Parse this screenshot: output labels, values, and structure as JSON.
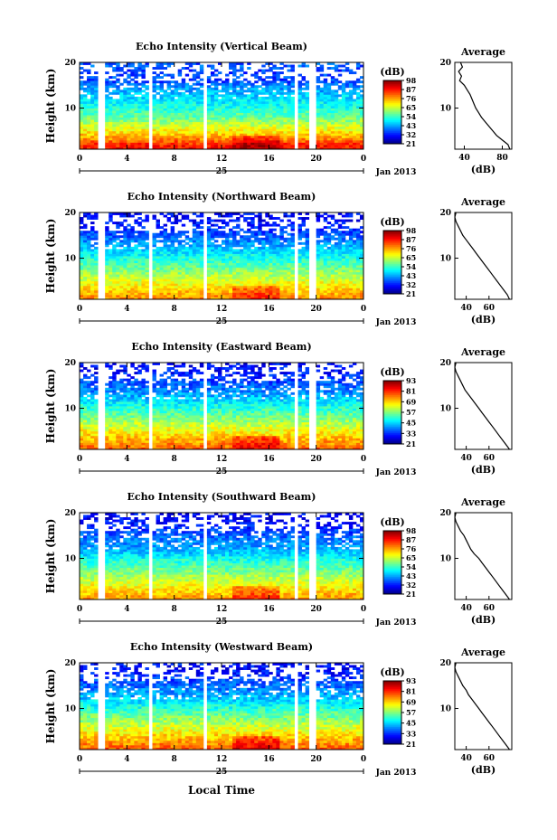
{
  "figure": {
    "time_axis_label": "Local Time",
    "date_label": "Jan 2013",
    "day_label": "25",
    "average_title": "Average",
    "average_unit": "(dB)",
    "colorbar_unit": "(dB)",
    "ylabel": "Height (km)"
  },
  "chart_data": [
    {
      "type": "heatmap",
      "title": "Echo Intensity (Vertical Beam)",
      "ylabel": "Height (km)",
      "xlabel": "",
      "x_range": [
        0,
        24
      ],
      "x_ticks": [
        "0",
        "4",
        "8",
        "12",
        "16",
        "20",
        "0"
      ],
      "y_range": [
        1,
        20
      ],
      "y_ticks": [
        "10",
        "20"
      ],
      "colorbar": {
        "ticks": [
          "21",
          "32",
          "43",
          "54",
          "65",
          "76",
          "87",
          "98"
        ],
        "range": [
          21,
          98
        ]
      },
      "data_gaps_hours": [
        [
          1.6,
          2.0
        ],
        [
          5.8,
          6.1
        ],
        [
          10.6,
          10.9
        ],
        [
          18.3,
          18.6
        ],
        [
          19.4,
          19.9
        ]
      ],
      "profile": {
        "title": "Average",
        "xlabel": "(dB)",
        "x_range": [
          30,
          90
        ],
        "x_ticks": [
          "40",
          "80"
        ],
        "height_km": [
          1,
          2,
          3,
          4,
          5,
          6,
          7,
          8,
          9,
          10,
          11,
          12,
          13,
          14,
          15,
          16,
          17,
          18,
          19,
          20
        ],
        "mean_db": [
          88,
          86,
          80,
          74,
          70,
          66,
          62,
          58,
          55,
          52,
          50,
          48,
          46,
          43,
          40,
          35,
          37,
          34,
          38,
          36
        ]
      }
    },
    {
      "type": "heatmap",
      "title": "Echo Intensity (Northward Beam)",
      "ylabel": "Height (km)",
      "xlabel": "",
      "x_range": [
        0,
        24
      ],
      "x_ticks": [
        "0",
        "4",
        "8",
        "12",
        "16",
        "20",
        "0"
      ],
      "y_range": [
        1,
        20
      ],
      "y_ticks": [
        "10",
        "20"
      ],
      "colorbar": {
        "ticks": [
          "21",
          "32",
          "43",
          "54",
          "65",
          "76",
          "87",
          "98"
        ],
        "range": [
          21,
          98
        ]
      },
      "data_gaps_hours": [
        [
          1.6,
          2.0
        ],
        [
          5.8,
          6.1
        ],
        [
          10.6,
          10.9
        ],
        [
          18.3,
          18.6
        ],
        [
          19.4,
          19.9
        ]
      ],
      "profile": {
        "title": "Average",
        "xlabel": "(dB)",
        "x_range": [
          30,
          80
        ],
        "x_ticks": [
          "40",
          "60"
        ],
        "height_km": [
          1,
          2,
          3,
          4,
          5,
          6,
          7,
          8,
          9,
          10,
          11,
          12,
          13,
          14,
          15,
          16,
          17,
          18,
          19,
          20
        ],
        "mean_db": [
          78,
          76,
          73,
          70,
          67,
          64,
          61,
          58,
          55,
          52,
          49,
          46,
          43,
          40,
          37,
          35,
          33,
          31,
          30,
          31
        ]
      }
    },
    {
      "type": "heatmap",
      "title": "Echo Intensity (Eastward Beam)",
      "ylabel": "Height (km)",
      "xlabel": "",
      "x_range": [
        0,
        24
      ],
      "x_ticks": [
        "0",
        "4",
        "8",
        "12",
        "16",
        "20",
        "0"
      ],
      "y_range": [
        1,
        20
      ],
      "y_ticks": [
        "10",
        "20"
      ],
      "colorbar": {
        "ticks": [
          "21",
          "33",
          "45",
          "57",
          "69",
          "81",
          "93"
        ],
        "range": [
          21,
          93
        ]
      },
      "data_gaps_hours": [
        [
          1.6,
          2.0
        ],
        [
          5.8,
          6.1
        ],
        [
          10.6,
          10.9
        ],
        [
          18.3,
          18.6
        ],
        [
          19.4,
          19.9
        ]
      ],
      "profile": {
        "title": "Average",
        "xlabel": "(dB)",
        "x_range": [
          30,
          80
        ],
        "x_ticks": [
          "40",
          "60"
        ],
        "height_km": [
          1,
          2,
          3,
          4,
          5,
          6,
          7,
          8,
          9,
          10,
          11,
          12,
          13,
          14,
          15,
          16,
          17,
          18,
          19,
          20
        ],
        "mean_db": [
          78,
          75,
          72,
          69,
          66,
          63,
          60,
          57,
          54,
          51,
          48,
          45,
          42,
          39,
          37,
          35,
          33,
          31,
          30,
          31
        ]
      }
    },
    {
      "type": "heatmap",
      "title": "Echo Intensity (Southward Beam)",
      "ylabel": "Height (km)",
      "xlabel": "",
      "x_range": [
        0,
        24
      ],
      "x_ticks": [
        "0",
        "4",
        "8",
        "12",
        "16",
        "20",
        "0"
      ],
      "y_range": [
        1,
        20
      ],
      "y_ticks": [
        "10",
        "20"
      ],
      "colorbar": {
        "ticks": [
          "21",
          "32",
          "43",
          "54",
          "65",
          "76",
          "87",
          "98"
        ],
        "range": [
          21,
          98
        ]
      },
      "data_gaps_hours": [
        [
          1.6,
          2.0
        ],
        [
          5.8,
          6.1
        ],
        [
          10.6,
          10.9
        ],
        [
          18.3,
          18.6
        ],
        [
          19.4,
          19.9
        ]
      ],
      "profile": {
        "title": "Average",
        "xlabel": "(dB)",
        "x_range": [
          30,
          80
        ],
        "x_ticks": [
          "40",
          "60"
        ],
        "height_km": [
          1,
          2,
          3,
          4,
          5,
          6,
          7,
          8,
          9,
          10,
          11,
          12,
          13,
          14,
          15,
          16,
          17,
          18,
          19,
          20
        ],
        "mean_db": [
          78,
          75,
          72,
          69,
          66,
          63,
          60,
          57,
          54,
          51,
          47,
          44,
          42,
          40,
          38,
          35,
          33,
          31,
          30,
          31
        ]
      }
    },
    {
      "type": "heatmap",
      "title": "Echo Intensity (Westward Beam)",
      "ylabel": "Height (km)",
      "xlabel": "",
      "x_range": [
        0,
        24
      ],
      "x_ticks": [
        "0",
        "4",
        "8",
        "12",
        "16",
        "20",
        "0"
      ],
      "y_range": [
        1,
        20
      ],
      "y_ticks": [
        "10",
        "20"
      ],
      "colorbar": {
        "ticks": [
          "21",
          "33",
          "45",
          "57",
          "69",
          "81",
          "93"
        ],
        "range": [
          21,
          93
        ]
      },
      "data_gaps_hours": [
        [
          1.6,
          2.0
        ],
        [
          5.8,
          6.1
        ],
        [
          10.6,
          10.9
        ],
        [
          18.3,
          18.6
        ],
        [
          19.4,
          19.9
        ]
      ],
      "profile": {
        "title": "Average",
        "xlabel": "(dB)",
        "x_range": [
          30,
          80
        ],
        "x_ticks": [
          "40",
          "60"
        ],
        "height_km": [
          1,
          2,
          3,
          4,
          5,
          6,
          7,
          8,
          9,
          10,
          11,
          12,
          13,
          14,
          15,
          16,
          17,
          18,
          19,
          20
        ],
        "mean_db": [
          78,
          75,
          72,
          69,
          66,
          63,
          60,
          57,
          54,
          51,
          48,
          45,
          42,
          40,
          37,
          35,
          33,
          31,
          30,
          31
        ]
      }
    }
  ]
}
